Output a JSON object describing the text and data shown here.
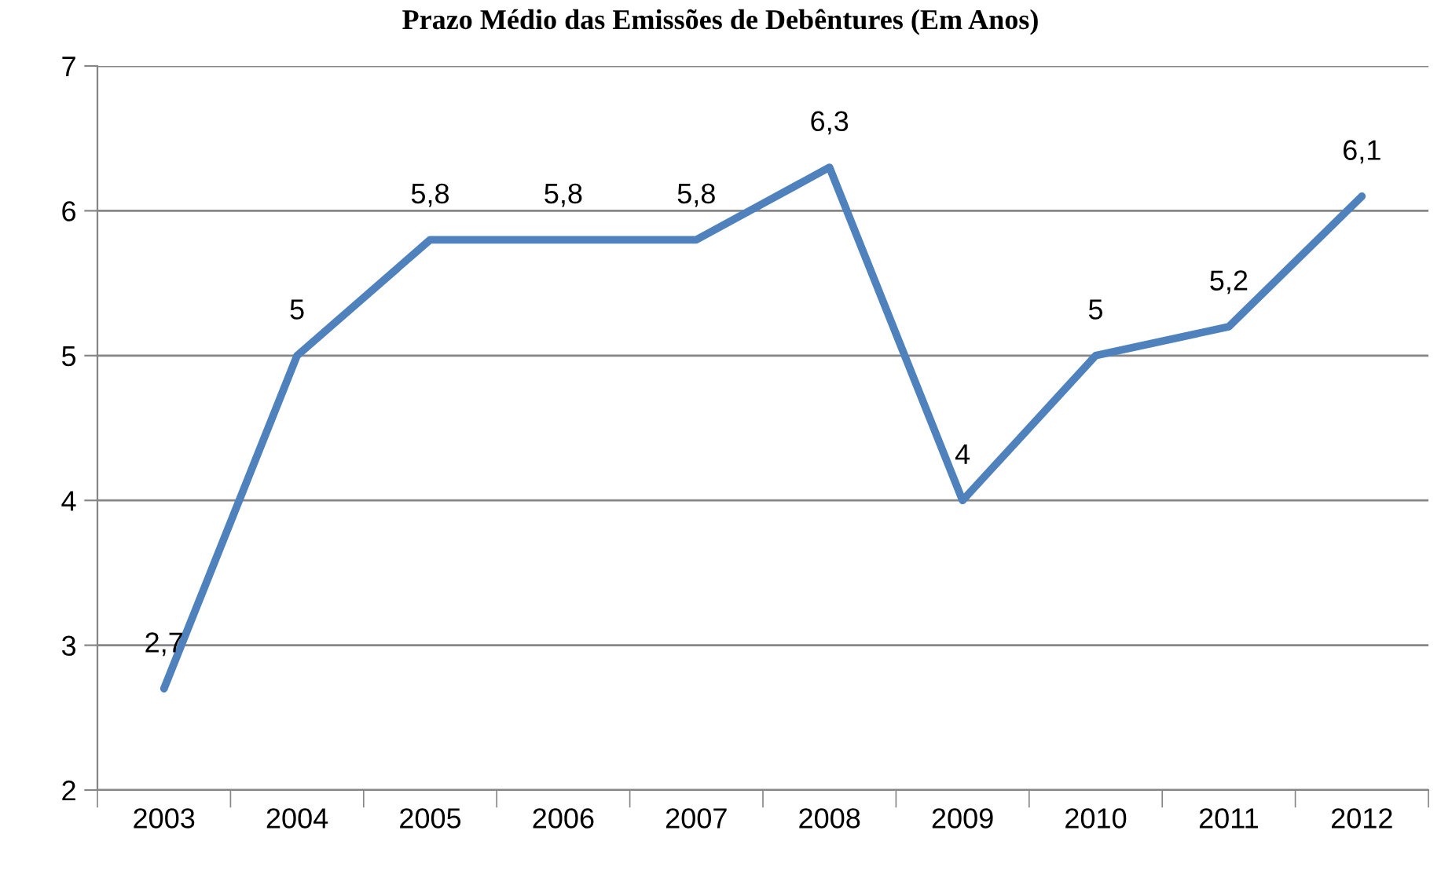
{
  "chart_data": {
    "type": "line",
    "title": "Prazo Médio das Emissões de Debêntures (Em Anos)",
    "categories": [
      "2003",
      "2004",
      "2005",
      "2006",
      "2007",
      "2008",
      "2009",
      "2010",
      "2011",
      "2012"
    ],
    "series": [
      {
        "color": "#4f81bd",
        "values": [
          2.7,
          5,
          5.8,
          5.8,
          5.8,
          6.3,
          4,
          5,
          5.2,
          6.1
        ],
        "value_labels": [
          "2,7",
          "5",
          "5,8",
          "5,8",
          "5,8",
          "6,3",
          "4",
          "5",
          "5,2",
          "6,1"
        ]
      }
    ],
    "ylim": [
      2,
      7
    ],
    "yticks": [
      2,
      3,
      4,
      5,
      6,
      7
    ],
    "grid": "y",
    "marker": "none",
    "line_style": "solid"
  }
}
